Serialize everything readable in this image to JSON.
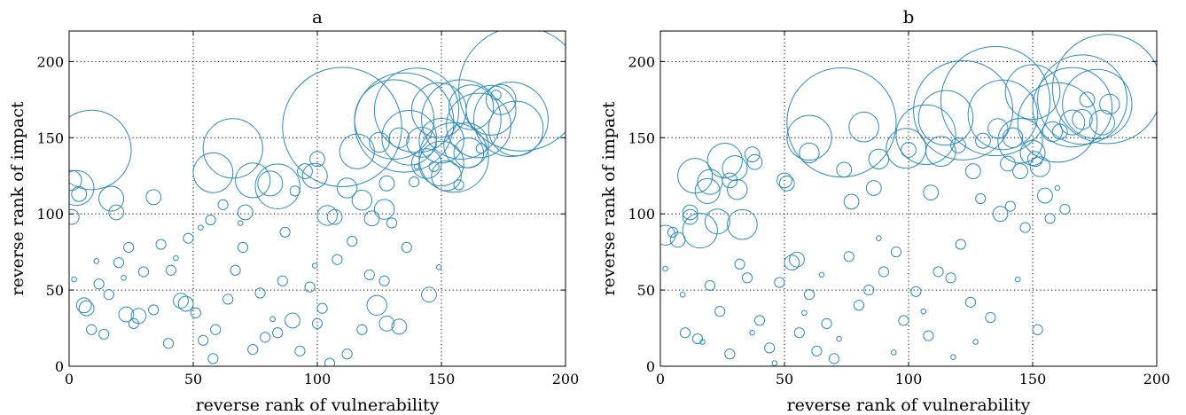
{
  "chart_data": [
    {
      "type": "scatter",
      "title": "a",
      "xlabel": "reverse rank of vulnerability",
      "ylabel": "reverse rank of impact",
      "xlim": [
        0,
        200
      ],
      "ylim": [
        0,
        220
      ],
      "xticks": [
        0,
        50,
        100,
        150,
        200
      ],
      "yticks": [
        0,
        50,
        100,
        150,
        200
      ],
      "grid": true,
      "marker_color": "#2b8cbe",
      "points": [
        {
          "x": 182,
          "y": 182,
          "r": 25
        },
        {
          "x": 110,
          "y": 157,
          "r": 24
        },
        {
          "x": 135,
          "y": 160,
          "r": 20
        },
        {
          "x": 140,
          "y": 168,
          "r": 17
        },
        {
          "x": 131,
          "y": 162,
          "r": 16
        },
        {
          "x": 158,
          "y": 162,
          "r": 16
        },
        {
          "x": 155,
          "y": 137,
          "r": 14
        },
        {
          "x": 178,
          "y": 162,
          "r": 15
        },
        {
          "x": 149,
          "y": 168,
          "r": 11
        },
        {
          "x": 165,
          "y": 158,
          "r": 13
        },
        {
          "x": 9,
          "y": 142,
          "r": 16
        },
        {
          "x": 66,
          "y": 143,
          "r": 12
        },
        {
          "x": 137,
          "y": 150,
          "r": 11
        },
        {
          "x": 150,
          "y": 133,
          "r": 9
        },
        {
          "x": 150,
          "y": 148,
          "r": 9
        },
        {
          "x": 180,
          "y": 156,
          "r": 11
        },
        {
          "x": 170,
          "y": 168,
          "r": 10
        },
        {
          "x": 160,
          "y": 145,
          "r": 9
        },
        {
          "x": 162,
          "y": 170,
          "r": 9
        },
        {
          "x": 84,
          "y": 118,
          "r": 9
        },
        {
          "x": 3,
          "y": 117,
          "r": 7
        },
        {
          "x": 58,
          "y": 127,
          "r": 8
        },
        {
          "x": 74,
          "y": 122,
          "r": 7
        },
        {
          "x": 116,
          "y": 141,
          "r": 7
        },
        {
          "x": 142,
          "y": 147,
          "r": 6
        },
        {
          "x": 144,
          "y": 133,
          "r": 6
        },
        {
          "x": 152,
          "y": 125,
          "r": 6
        },
        {
          "x": 161,
          "y": 140,
          "r": 6
        },
        {
          "x": 174,
          "y": 175,
          "r": 6
        },
        {
          "x": 99,
          "y": 125,
          "r": 5
        },
        {
          "x": 81,
          "y": 120,
          "r": 5
        },
        {
          "x": 17,
          "y": 110,
          "r": 5
        },
        {
          "x": 112,
          "y": 117,
          "r": 4
        },
        {
          "x": 125,
          "y": 147,
          "r": 4
        },
        {
          "x": 133,
          "y": 150,
          "r": 4
        },
        {
          "x": 127,
          "y": 103,
          "r": 4
        },
        {
          "x": 124,
          "y": 40,
          "r": 4
        },
        {
          "x": 118,
          "y": 109,
          "r": 4
        },
        {
          "x": 104,
          "y": 99,
          "r": 4
        },
        {
          "x": 1,
          "y": 122,
          "r": 4
        },
        {
          "x": 1,
          "y": 98,
          "r": 3
        },
        {
          "x": 4,
          "y": 113,
          "r": 3
        },
        {
          "x": 19,
          "y": 101,
          "r": 3
        },
        {
          "x": 34,
          "y": 111,
          "r": 3
        },
        {
          "x": 71,
          "y": 101,
          "r": 3
        },
        {
          "x": 95,
          "y": 128,
          "r": 3
        },
        {
          "x": 100,
          "y": 136,
          "r": 3
        },
        {
          "x": 90,
          "y": 30,
          "r": 3
        },
        {
          "x": 45,
          "y": 43,
          "r": 3
        },
        {
          "x": 47,
          "y": 41,
          "r": 3
        },
        {
          "x": 6,
          "y": 40,
          "r": 3
        },
        {
          "x": 7,
          "y": 38,
          "r": 3
        },
        {
          "x": 23,
          "y": 34,
          "r": 3
        },
        {
          "x": 28,
          "y": 33,
          "r": 3
        },
        {
          "x": 133,
          "y": 26,
          "r": 3
        },
        {
          "x": 128,
          "y": 28,
          "r": 3
        },
        {
          "x": 145,
          "y": 47,
          "r": 3
        },
        {
          "x": 128,
          "y": 120,
          "r": 3
        },
        {
          "x": 122,
          "y": 97,
          "r": 3
        },
        {
          "x": 107,
          "y": 98,
          "r": 3
        },
        {
          "x": 84,
          "y": 22,
          "r": 2
        },
        {
          "x": 59,
          "y": 24,
          "r": 2
        },
        {
          "x": 54,
          "y": 17,
          "r": 2
        },
        {
          "x": 40,
          "y": 15,
          "r": 2
        },
        {
          "x": 34,
          "y": 37,
          "r": 2
        },
        {
          "x": 30,
          "y": 62,
          "r": 2
        },
        {
          "x": 37,
          "y": 80,
          "r": 2
        },
        {
          "x": 48,
          "y": 84,
          "r": 2
        },
        {
          "x": 57,
          "y": 96,
          "r": 2
        },
        {
          "x": 62,
          "y": 106,
          "r": 2
        },
        {
          "x": 70,
          "y": 78,
          "r": 2
        },
        {
          "x": 77,
          "y": 48,
          "r": 2
        },
        {
          "x": 87,
          "y": 88,
          "r": 2
        },
        {
          "x": 91,
          "y": 115,
          "r": 2
        },
        {
          "x": 93,
          "y": 10,
          "r": 2
        },
        {
          "x": 100,
          "y": 28,
          "r": 2
        },
        {
          "x": 105,
          "y": 2,
          "r": 2
        },
        {
          "x": 112,
          "y": 8,
          "r": 2
        },
        {
          "x": 118,
          "y": 24,
          "r": 2
        },
        {
          "x": 121,
          "y": 60,
          "r": 2
        },
        {
          "x": 130,
          "y": 94,
          "r": 2
        },
        {
          "x": 139,
          "y": 121,
          "r": 2
        },
        {
          "x": 147,
          "y": 131,
          "r": 2
        },
        {
          "x": 157,
          "y": 119,
          "r": 2
        },
        {
          "x": 166,
          "y": 143,
          "r": 2
        },
        {
          "x": 172,
          "y": 178,
          "r": 2
        },
        {
          "x": 12,
          "y": 54,
          "r": 2
        },
        {
          "x": 16,
          "y": 47,
          "r": 2
        },
        {
          "x": 20,
          "y": 68,
          "r": 2
        },
        {
          "x": 24,
          "y": 78,
          "r": 2
        },
        {
          "x": 26,
          "y": 28,
          "r": 2
        },
        {
          "x": 41,
          "y": 63,
          "r": 2
        },
        {
          "x": 51,
          "y": 35,
          "r": 2
        },
        {
          "x": 58,
          "y": 5,
          "r": 2
        },
        {
          "x": 64,
          "y": 44,
          "r": 2
        },
        {
          "x": 67,
          "y": 63,
          "r": 2
        },
        {
          "x": 74,
          "y": 11,
          "r": 2
        },
        {
          "x": 79,
          "y": 19,
          "r": 2
        },
        {
          "x": 86,
          "y": 56,
          "r": 2
        },
        {
          "x": 97,
          "y": 52,
          "r": 2
        },
        {
          "x": 102,
          "y": 38,
          "r": 2
        },
        {
          "x": 108,
          "y": 70,
          "r": 2
        },
        {
          "x": 114,
          "y": 82,
          "r": 2
        },
        {
          "x": 127,
          "y": 56,
          "r": 2
        },
        {
          "x": 136,
          "y": 78,
          "r": 2
        },
        {
          "x": 9,
          "y": 24,
          "r": 2
        },
        {
          "x": 14,
          "y": 21,
          "r": 2
        },
        {
          "x": 11,
          "y": 69,
          "r": 1
        },
        {
          "x": 2,
          "y": 57,
          "r": 1
        },
        {
          "x": 22,
          "y": 58,
          "r": 1
        },
        {
          "x": 43,
          "y": 71,
          "r": 1
        },
        {
          "x": 53,
          "y": 91,
          "r": 1
        },
        {
          "x": 69,
          "y": 94,
          "r": 1
        },
        {
          "x": 82,
          "y": 31,
          "r": 1
        },
        {
          "x": 99,
          "y": 66,
          "r": 1
        },
        {
          "x": 149,
          "y": 65,
          "r": 1
        },
        {
          "x": 140,
          "y": 131,
          "r": 1
        }
      ]
    },
    {
      "type": "scatter",
      "title": "b",
      "xlabel": "reverse rank of vulnerability",
      "ylabel": "reverse rank of impact",
      "xlim": [
        0,
        200
      ],
      "ylim": [
        0,
        220
      ],
      "xticks": [
        0,
        50,
        100,
        150,
        200
      ],
      "yticks": [
        0,
        50,
        100,
        150,
        200
      ],
      "grid": true,
      "marker_color": "#2b8cbe",
      "points": [
        {
          "x": 180,
          "y": 182,
          "r": 22
        },
        {
          "x": 135,
          "y": 174,
          "r": 22
        },
        {
          "x": 73,
          "y": 160,
          "r": 22
        },
        {
          "x": 122,
          "y": 168,
          "r": 20
        },
        {
          "x": 170,
          "y": 175,
          "r": 18
        },
        {
          "x": 160,
          "y": 160,
          "r": 16
        },
        {
          "x": 166,
          "y": 170,
          "r": 16
        },
        {
          "x": 176,
          "y": 172,
          "r": 14
        },
        {
          "x": 138,
          "y": 165,
          "r": 14
        },
        {
          "x": 107,
          "y": 152,
          "r": 12
        },
        {
          "x": 115,
          "y": 163,
          "r": 11
        },
        {
          "x": 150,
          "y": 180,
          "r": 11
        },
        {
          "x": 145,
          "y": 148,
          "r": 9
        },
        {
          "x": 99,
          "y": 143,
          "r": 8
        },
        {
          "x": 60,
          "y": 150,
          "r": 9
        },
        {
          "x": 26,
          "y": 135,
          "r": 7
        },
        {
          "x": 14,
          "y": 125,
          "r": 7
        },
        {
          "x": 33,
          "y": 93,
          "r": 6
        },
        {
          "x": 16,
          "y": 89,
          "r": 7
        },
        {
          "x": 82,
          "y": 157,
          "r": 6
        },
        {
          "x": 113,
          "y": 141,
          "r": 6
        },
        {
          "x": 150,
          "y": 140,
          "r": 5
        },
        {
          "x": 166,
          "y": 160,
          "r": 5
        },
        {
          "x": 178,
          "y": 160,
          "r": 5
        },
        {
          "x": 23,
          "y": 95,
          "r": 5
        },
        {
          "x": 2,
          "y": 86,
          "r": 4
        },
        {
          "x": 19,
          "y": 115,
          "r": 5
        },
        {
          "x": 20,
          "y": 121,
          "r": 5
        },
        {
          "x": 30,
          "y": 130,
          "r": 5
        },
        {
          "x": 31,
          "y": 116,
          "r": 4
        },
        {
          "x": 60,
          "y": 140,
          "r": 4
        },
        {
          "x": 88,
          "y": 136,
          "r": 4
        },
        {
          "x": 136,
          "y": 156,
          "r": 4
        },
        {
          "x": 142,
          "y": 150,
          "r": 4
        },
        {
          "x": 153,
          "y": 131,
          "r": 4
        },
        {
          "x": 158,
          "y": 154,
          "r": 4
        },
        {
          "x": 170,
          "y": 162,
          "r": 4
        },
        {
          "x": 181,
          "y": 172,
          "r": 4
        },
        {
          "x": 7,
          "y": 83,
          "r": 3
        },
        {
          "x": 12,
          "y": 101,
          "r": 3
        },
        {
          "x": 12,
          "y": 98,
          "r": 3
        },
        {
          "x": 28,
          "y": 122,
          "r": 3
        },
        {
          "x": 38,
          "y": 134,
          "r": 3
        },
        {
          "x": 37,
          "y": 139,
          "r": 3
        },
        {
          "x": 50,
          "y": 122,
          "r": 3
        },
        {
          "x": 51,
          "y": 120,
          "r": 3
        },
        {
          "x": 53,
          "y": 68,
          "r": 3
        },
        {
          "x": 55,
          "y": 70,
          "r": 3
        },
        {
          "x": 74,
          "y": 129,
          "r": 3
        },
        {
          "x": 77,
          "y": 108,
          "r": 3
        },
        {
          "x": 86,
          "y": 117,
          "r": 3
        },
        {
          "x": 100,
          "y": 142,
          "r": 3
        },
        {
          "x": 109,
          "y": 114,
          "r": 3
        },
        {
          "x": 120,
          "y": 145,
          "r": 3
        },
        {
          "x": 126,
          "y": 128,
          "r": 3
        },
        {
          "x": 130,
          "y": 148,
          "r": 3
        },
        {
          "x": 137,
          "y": 100,
          "r": 3
        },
        {
          "x": 140,
          "y": 133,
          "r": 3
        },
        {
          "x": 145,
          "y": 128,
          "r": 3
        },
        {
          "x": 151,
          "y": 136,
          "r": 3
        },
        {
          "x": 155,
          "y": 112,
          "r": 3
        },
        {
          "x": 161,
          "y": 154,
          "r": 3
        },
        {
          "x": 172,
          "y": 175,
          "r": 3
        },
        {
          "x": 5,
          "y": 88,
          "r": 2
        },
        {
          "x": 10,
          "y": 22,
          "r": 2
        },
        {
          "x": 15,
          "y": 18,
          "r": 2
        },
        {
          "x": 20,
          "y": 53,
          "r": 2
        },
        {
          "x": 24,
          "y": 36,
          "r": 2
        },
        {
          "x": 28,
          "y": 8,
          "r": 2
        },
        {
          "x": 32,
          "y": 67,
          "r": 2
        },
        {
          "x": 35,
          "y": 58,
          "r": 2
        },
        {
          "x": 40,
          "y": 30,
          "r": 2
        },
        {
          "x": 44,
          "y": 12,
          "r": 2
        },
        {
          "x": 48,
          "y": 55,
          "r": 2
        },
        {
          "x": 56,
          "y": 22,
          "r": 2
        },
        {
          "x": 60,
          "y": 47,
          "r": 2
        },
        {
          "x": 63,
          "y": 10,
          "r": 2
        },
        {
          "x": 67,
          "y": 28,
          "r": 2
        },
        {
          "x": 70,
          "y": 5,
          "r": 2
        },
        {
          "x": 76,
          "y": 72,
          "r": 2
        },
        {
          "x": 80,
          "y": 40,
          "r": 2
        },
        {
          "x": 84,
          "y": 50,
          "r": 2
        },
        {
          "x": 90,
          "y": 62,
          "r": 2
        },
        {
          "x": 95,
          "y": 75,
          "r": 2
        },
        {
          "x": 98,
          "y": 30,
          "r": 2
        },
        {
          "x": 103,
          "y": 49,
          "r": 2
        },
        {
          "x": 108,
          "y": 20,
          "r": 2
        },
        {
          "x": 112,
          "y": 62,
          "r": 2
        },
        {
          "x": 117,
          "y": 58,
          "r": 2
        },
        {
          "x": 121,
          "y": 80,
          "r": 2
        },
        {
          "x": 125,
          "y": 42,
          "r": 2
        },
        {
          "x": 129,
          "y": 110,
          "r": 2
        },
        {
          "x": 133,
          "y": 32,
          "r": 2
        },
        {
          "x": 141,
          "y": 105,
          "r": 2
        },
        {
          "x": 147,
          "y": 91,
          "r": 2
        },
        {
          "x": 152,
          "y": 24,
          "r": 2
        },
        {
          "x": 157,
          "y": 97,
          "r": 2
        },
        {
          "x": 163,
          "y": 103,
          "r": 2
        },
        {
          "x": 2,
          "y": 64,
          "r": 1
        },
        {
          "x": 9,
          "y": 47,
          "r": 1
        },
        {
          "x": 17,
          "y": 16,
          "r": 1
        },
        {
          "x": 37,
          "y": 22,
          "r": 1
        },
        {
          "x": 46,
          "y": 2,
          "r": 1
        },
        {
          "x": 58,
          "y": 35,
          "r": 1
        },
        {
          "x": 65,
          "y": 60,
          "r": 1
        },
        {
          "x": 72,
          "y": 18,
          "r": 1
        },
        {
          "x": 88,
          "y": 84,
          "r": 1
        },
        {
          "x": 94,
          "y": 9,
          "r": 1
        },
        {
          "x": 106,
          "y": 36,
          "r": 1
        },
        {
          "x": 118,
          "y": 6,
          "r": 1
        },
        {
          "x": 127,
          "y": 16,
          "r": 1
        },
        {
          "x": 144,
          "y": 57,
          "r": 1
        },
        {
          "x": 160,
          "y": 117,
          "r": 1
        }
      ]
    }
  ]
}
